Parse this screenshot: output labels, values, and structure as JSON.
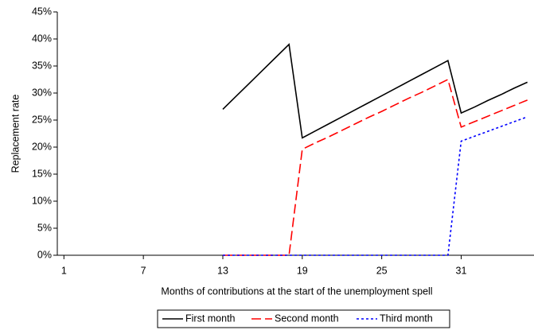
{
  "chart_data": {
    "type": "line",
    "x_label": "Months of contributions at the start of the unemployment spell",
    "y_label": "Replacement rate",
    "x": [
      1,
      2,
      3,
      4,
      5,
      6,
      7,
      8,
      9,
      10,
      11,
      12,
      13,
      14,
      15,
      16,
      17,
      18,
      19,
      20,
      21,
      22,
      23,
      24,
      25,
      26,
      27,
      28,
      29,
      30,
      31,
      32,
      33,
      34,
      35,
      36
    ],
    "xlim": [
      0.5,
      36.5
    ],
    "xticks": [
      1,
      7,
      13,
      19,
      25,
      31
    ],
    "ylim": [
      0,
      45
    ],
    "yticks": [
      {
        "value": 0,
        "label": "0%"
      },
      {
        "value": 5,
        "label": "5%"
      },
      {
        "value": 10,
        "label": "10%"
      },
      {
        "value": 15,
        "label": "15%"
      },
      {
        "value": 20,
        "label": "20%"
      },
      {
        "value": 25,
        "label": "25%"
      },
      {
        "value": 30,
        "label": "30%"
      },
      {
        "value": 35,
        "label": "35%"
      },
      {
        "value": 40,
        "label": "40%"
      },
      {
        "value": 45,
        "label": "45%"
      }
    ],
    "legend": "bottom",
    "series": [
      {
        "name": "First month",
        "color": "#000000",
        "dash": "solid",
        "values": [
          null,
          null,
          null,
          null,
          null,
          null,
          null,
          null,
          null,
          null,
          null,
          null,
          27,
          29.4,
          31.8,
          34.2,
          36.6,
          39,
          21.7,
          23.0,
          24.3,
          25.6,
          26.9,
          28.2,
          29.5,
          30.8,
          32.1,
          33.4,
          34.7,
          36.0,
          26.3,
          27.4,
          28.6,
          29.7,
          30.9,
          32.0
        ]
      },
      {
        "name": "Second month",
        "color": "#ff0000",
        "dash": "dashed",
        "values": [
          null,
          null,
          null,
          null,
          null,
          null,
          null,
          null,
          null,
          null,
          null,
          null,
          0,
          0,
          0,
          0,
          0,
          0,
          19.6,
          20.8,
          21.9,
          23.1,
          24.3,
          25.5,
          26.6,
          27.8,
          29.0,
          30.1,
          31.3,
          32.5,
          23.7,
          24.7,
          25.7,
          26.7,
          27.7,
          28.7
        ]
      },
      {
        "name": "Third month",
        "color": "#0000ff",
        "dash": "dotted",
        "values": [
          null,
          null,
          null,
          null,
          null,
          null,
          null,
          null,
          null,
          null,
          null,
          null,
          0,
          0,
          0,
          0,
          0,
          0,
          0,
          0,
          0,
          0,
          0,
          0,
          0,
          0,
          0,
          0,
          0,
          0,
          21.1,
          22.0,
          22.9,
          23.8,
          24.7,
          25.6
        ]
      }
    ]
  }
}
